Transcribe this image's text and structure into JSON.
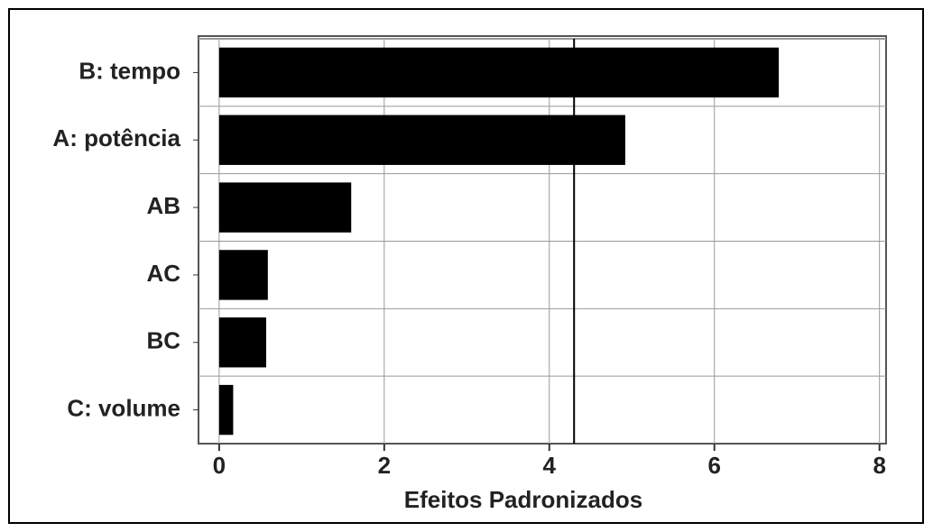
{
  "chart_data": {
    "type": "barh",
    "x_label": "Efeitos Padronizados",
    "categories": [
      "B: tempo",
      "A: potência",
      "AB",
      "AC",
      "BC",
      "C: volume"
    ],
    "values": [
      6.78,
      4.92,
      1.6,
      0.59,
      0.57,
      0.17
    ],
    "color": "#000000",
    "reference_line": 4.3,
    "xlim": [
      -0.25,
      8.08
    ],
    "xticks": [
      0,
      2,
      4,
      6,
      8
    ],
    "grid": true
  }
}
